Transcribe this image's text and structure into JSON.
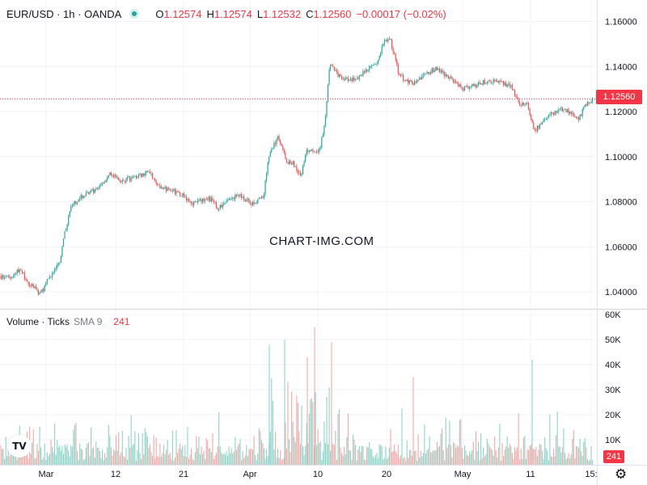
{
  "header": {
    "symbol": "EUR/USD · 1h · OANDA",
    "o_label": "O",
    "o_value": "1.12574",
    "h_label": "H",
    "h_value": "1.12574",
    "l_label": "L",
    "l_value": "1.12532",
    "c_label": "C",
    "c_value": "1.12560",
    "change": "−0.00017 (−0.02%)"
  },
  "volume_legend": {
    "title": "Volume · Ticks",
    "sma_label": "SMA 9",
    "sma_value": "241"
  },
  "watermark": "CHART-IMG.COM",
  "last_price_label": "1.12560",
  "last_volume_label": "241",
  "logo_text": "TV",
  "colors": {
    "up": "#26a69a",
    "down": "#ef5350",
    "vol_up": "#8dd4c8",
    "vol_down": "#f2a9a7",
    "grid": "#f0f3fa",
    "accent": "#f23645"
  },
  "chart_data": [
    {
      "type": "candlestick",
      "instrument": "EUR/USD",
      "interval": "1h",
      "x_ticks": [
        "Mar",
        "12",
        "21",
        "Apr",
        "10",
        "20",
        "May",
        "11",
        "15:"
      ],
      "y_ticks": [
        "1.16000",
        "1.14000",
        "1.12000",
        "1.10000",
        "1.08000",
        "1.06000",
        "1.04000"
      ],
      "ylim": [
        1.0325,
        1.1695
      ],
      "last_price": 1.1256,
      "trend_keypoints": {
        "x": [
          0,
          12,
          24,
          36,
          50,
          62,
          74,
          80,
          88,
          100,
          118,
          136,
          150,
          166,
          184,
          200,
          222,
          240,
          258,
          270,
          282,
          296,
          312,
          326,
          332,
          344,
          354,
          362,
          372,
          380,
          390,
          396,
          402,
          408,
          416,
          428,
          440,
          452,
          466,
          474,
          482,
          492,
          500,
          512,
          526,
          540,
          556,
          572,
          590,
          604,
          618,
          632,
          644,
          652,
          660,
          668,
          676,
          686,
          696,
          708,
          716,
          724,
          732
        ],
        "price": [
          1.047,
          1.046,
          1.05,
          1.044,
          1.039,
          1.047,
          1.053,
          1.066,
          1.078,
          1.082,
          1.085,
          1.092,
          1.089,
          1.091,
          1.093,
          1.086,
          1.084,
          1.079,
          1.082,
          1.077,
          1.081,
          1.083,
          1.079,
          1.083,
          1.1,
          1.109,
          1.098,
          1.097,
          1.092,
          1.103,
          1.102,
          1.104,
          1.116,
          1.142,
          1.137,
          1.134,
          1.134,
          1.138,
          1.141,
          1.151,
          1.153,
          1.138,
          1.134,
          1.133,
          1.137,
          1.139,
          1.135,
          1.13,
          1.132,
          1.134,
          1.133,
          1.131,
          1.123,
          1.124,
          1.111,
          1.114,
          1.118,
          1.12,
          1.121,
          1.119,
          1.117,
          1.123,
          1.1256
        ]
      }
    },
    {
      "type": "bar",
      "name": "Volume · Ticks",
      "y_ticks": [
        "60K",
        "50K",
        "40K",
        "30K",
        "20K",
        "10K"
      ],
      "ylim": [
        0,
        62000
      ],
      "sma": 241,
      "spike_examples_k": [
        55,
        50,
        49,
        48,
        43,
        42,
        35
      ]
    }
  ]
}
